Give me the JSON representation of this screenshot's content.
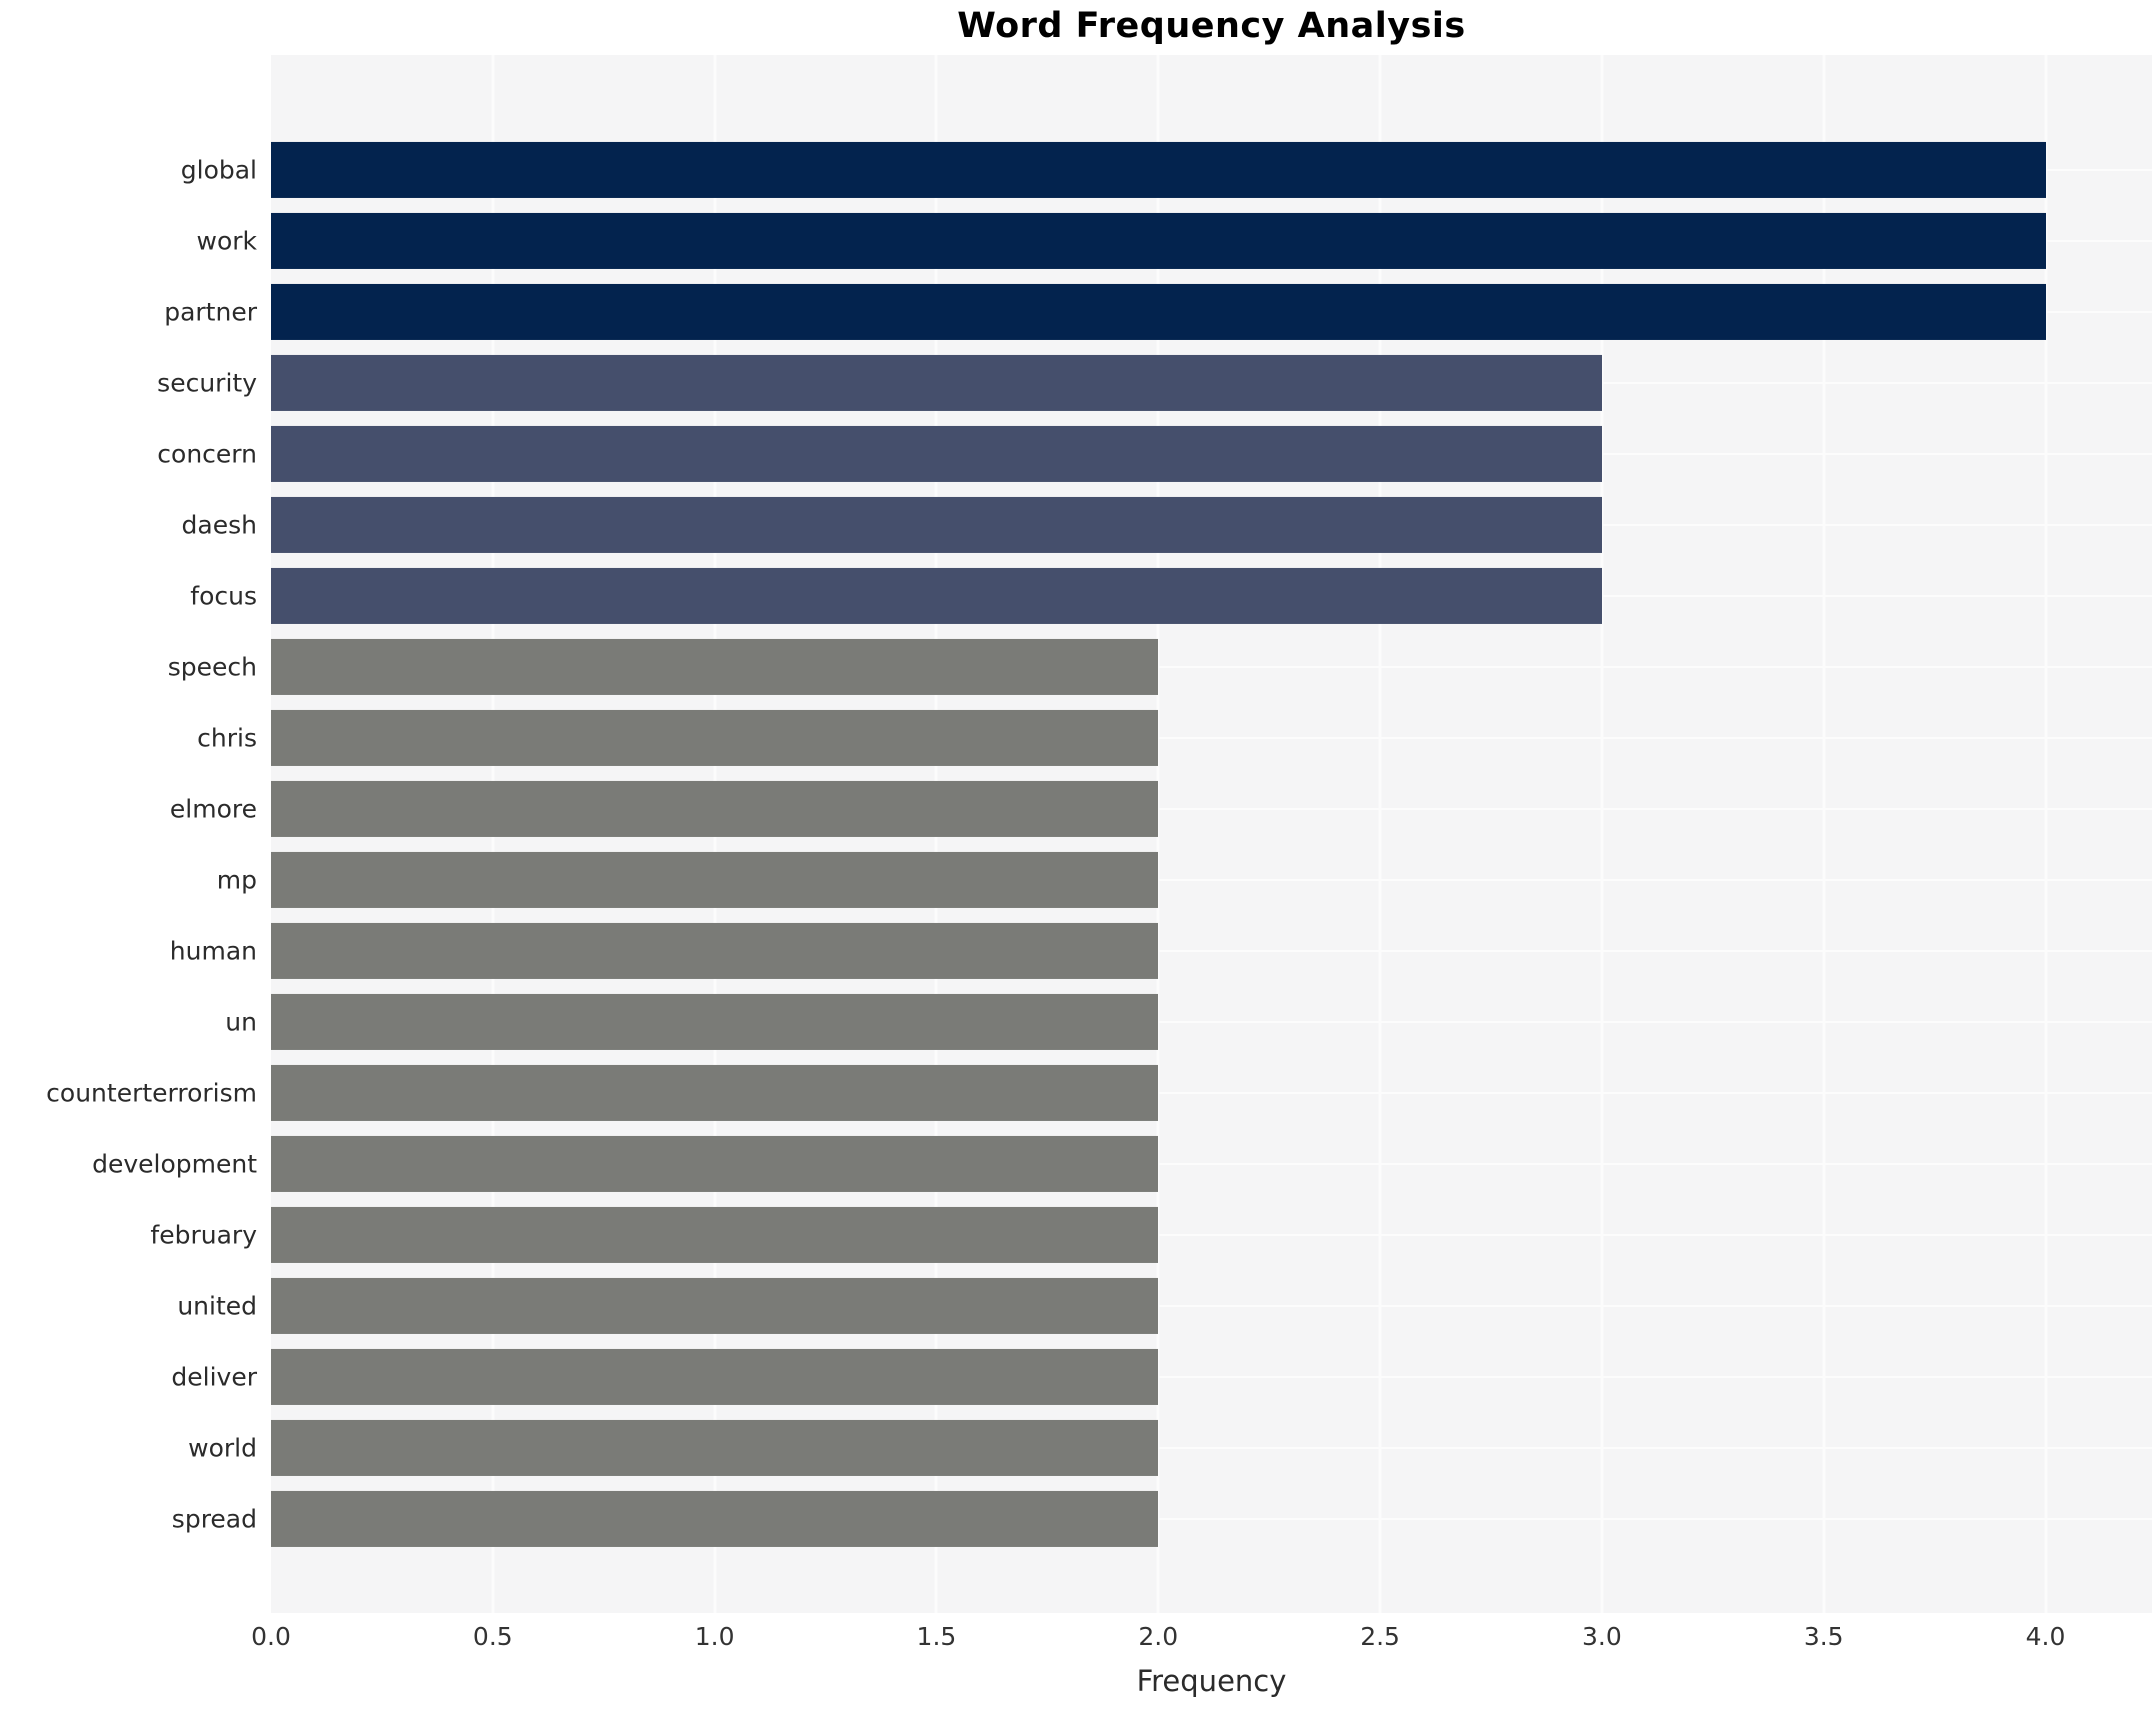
{
  "chart_data": {
    "type": "bar",
    "orientation": "horizontal",
    "title": "Word Frequency Analysis",
    "xlabel": "Frequency",
    "ylabel": "",
    "categories": [
      "global",
      "work",
      "partner",
      "security",
      "concern",
      "daesh",
      "focus",
      "speech",
      "chris",
      "elmore",
      "mp",
      "human",
      "un",
      "counterterrorism",
      "development",
      "february",
      "united",
      "deliver",
      "world",
      "spread"
    ],
    "values": [
      4,
      4,
      4,
      3,
      3,
      3,
      3,
      2,
      2,
      2,
      2,
      2,
      2,
      2,
      2,
      2,
      2,
      2,
      2,
      2
    ],
    "bar_colors": [
      "#03234e",
      "#03234e",
      "#03234e",
      "#454f6c",
      "#454f6c",
      "#454f6c",
      "#454f6c",
      "#7a7b77",
      "#7a7b77",
      "#7a7b77",
      "#7a7b77",
      "#7a7b77",
      "#7a7b77",
      "#7a7b77",
      "#7a7b77",
      "#7a7b77",
      "#7a7b77",
      "#7a7b77",
      "#7a7b77",
      "#7a7b77"
    ],
    "color_legend": {
      "frequency_4": "#03234e",
      "frequency_3": "#454f6c",
      "frequency_2": "#7a7b77"
    },
    "xlim": [
      0,
      4.24
    ],
    "xticks": [
      "0.0",
      "0.5",
      "1.0",
      "1.5",
      "2.0",
      "2.5",
      "3.0",
      "3.5",
      "4.0"
    ],
    "xtick_values": [
      0,
      0.5,
      1,
      1.5,
      2,
      2.5,
      3,
      3.5,
      4
    ],
    "grid": true,
    "legend": false,
    "plot_background": "#f5f5f6",
    "figure_background": "#ffffff",
    "gridline_color": "#fcfcfc"
  }
}
